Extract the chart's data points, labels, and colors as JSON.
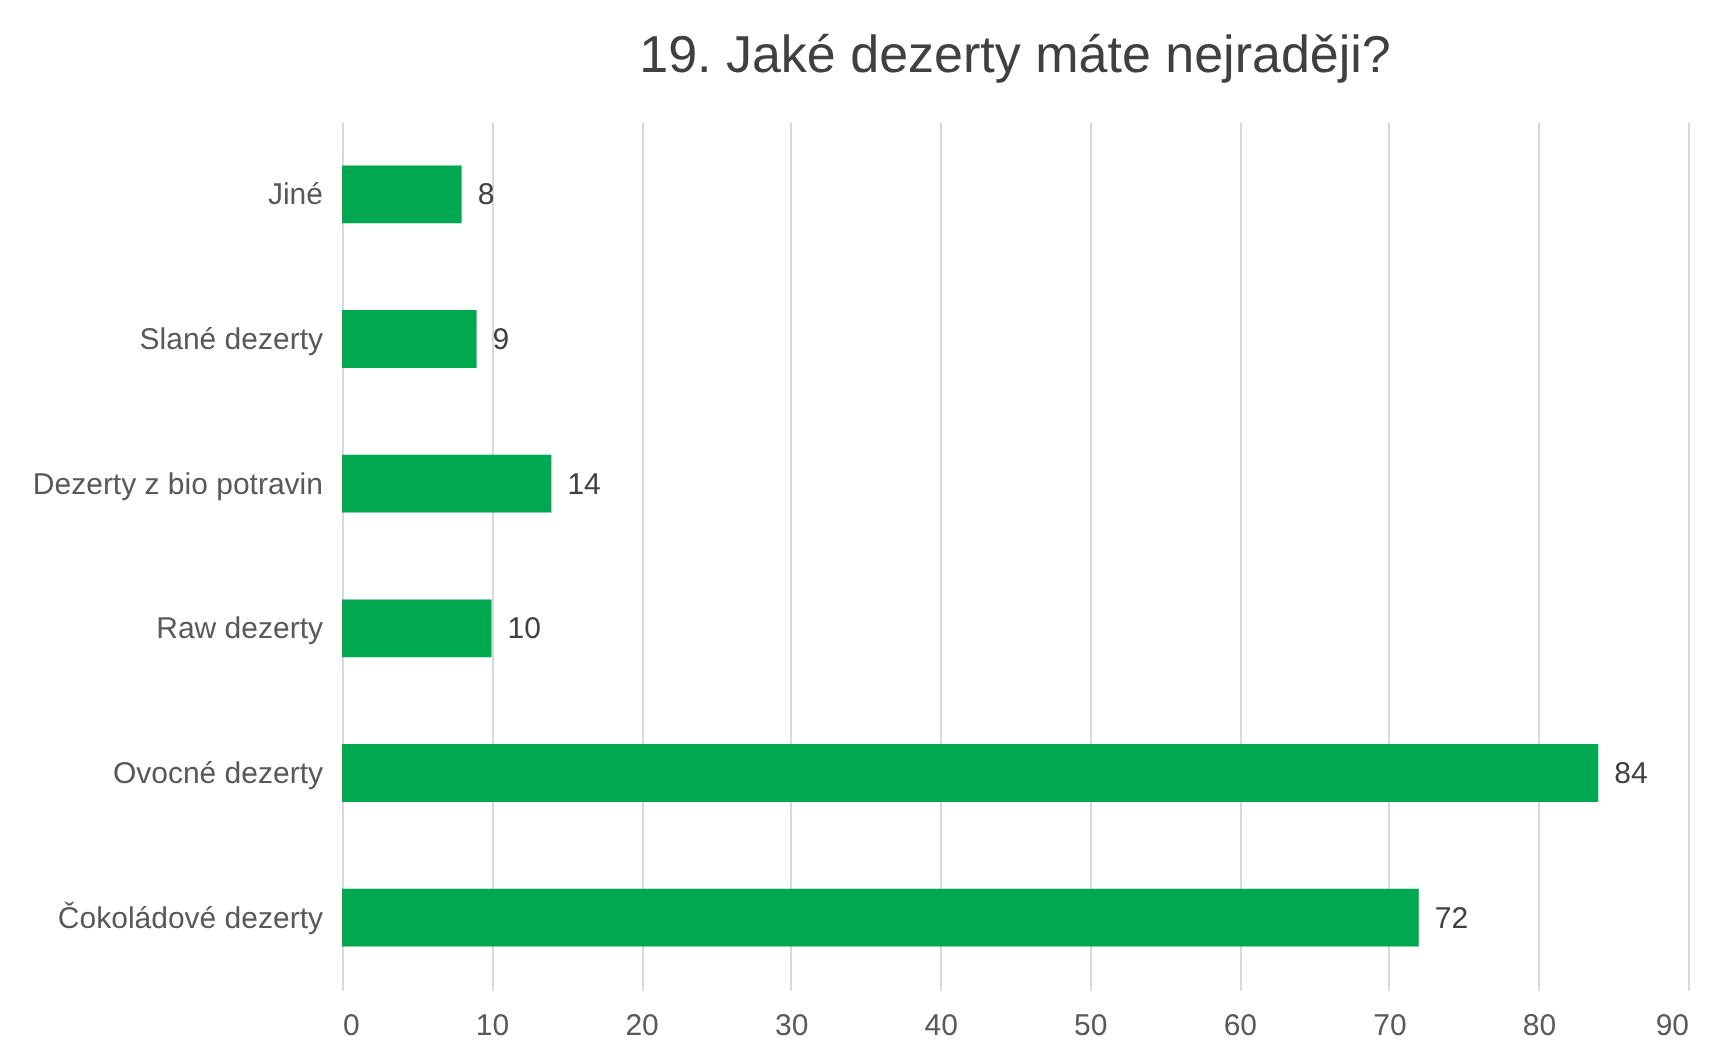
{
  "chart_data": {
    "type": "bar",
    "orientation": "horizontal",
    "title": "19. Jaké dezerty máte nejraději?",
    "categories": [
      "Jiné",
      "Slané dezerty",
      "Dezerty z bio potravin",
      "Raw dezerty",
      "Ovocné dezerty",
      "Čokoládové dezerty"
    ],
    "values": [
      8,
      9,
      14,
      10,
      84,
      72
    ],
    "color": "#00a84f",
    "xlim": [
      0,
      90
    ],
    "xticks": [
      0,
      10,
      20,
      30,
      40,
      50,
      60,
      70,
      80,
      90
    ],
    "grid": "x",
    "data_labels": true
  }
}
